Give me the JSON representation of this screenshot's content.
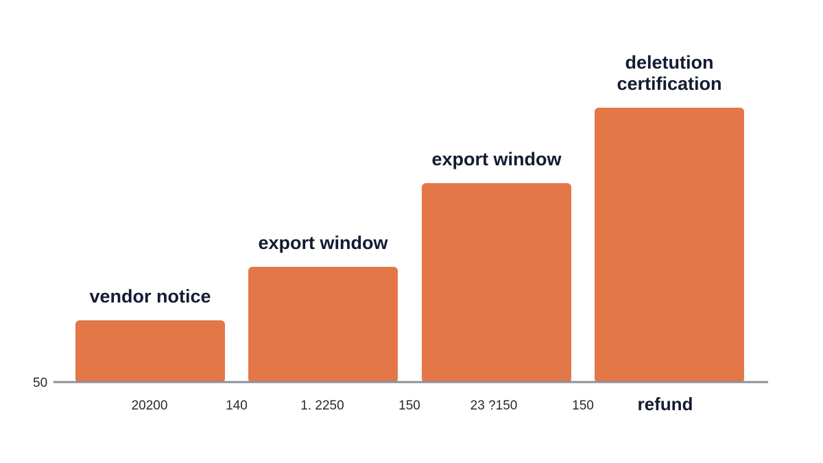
{
  "chart_data": {
    "type": "bar",
    "colors": {
      "bar": "#e37748",
      "axis": "#8a9099",
      "text": "#141b33"
    },
    "y_axis_tick": "50",
    "categories": [
      "vendor notice",
      "export window",
      "export window",
      "deletution certification"
    ],
    "values": [
      90,
      168,
      290,
      400
    ],
    "ylim": [
      0,
      400
    ],
    "x_tick_labels": [
      "20200",
      "140",
      "1. 2250",
      "150",
      "23 ?150",
      "150",
      "refund"
    ],
    "grid": false,
    "legend": "none"
  }
}
